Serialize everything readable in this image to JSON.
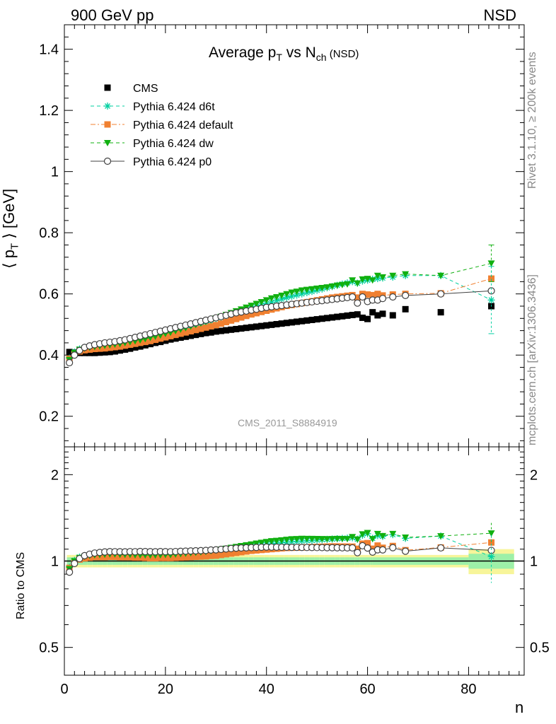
{
  "header": {
    "left": "900 GeV pp",
    "right": "NSD"
  },
  "title": {
    "prefix": "Average p",
    "sub1": "T",
    "mid": " vs N",
    "sub2": "ch",
    "suffix": " (NSD)"
  },
  "side": {
    "rivet": "Rivet 3.1.10, ≥ 200k events",
    "mcplots": "mcplots.cern.ch [arXiv:1306.3436]"
  },
  "watermark": "CMS_2011_S8884919",
  "chart_data": [
    {
      "type": "scatter",
      "panel": "main",
      "title": "Average p_T vs N_ch (NSD)",
      "xlabel": "n",
      "ylabel": "⟨ p_T ⟩ [GeV]",
      "xlim": [
        0,
        91
      ],
      "ylim": [
        0.1,
        1.48
      ],
      "yticks": [
        "0.2",
        "0.4",
        "0.6",
        "0.8",
        "1",
        "1.2",
        "1.4"
      ],
      "legend_position": "top-left",
      "series": [
        {
          "name": "CMS",
          "color": "#000000",
          "marker": "square",
          "x": [
            1,
            2,
            3,
            4,
            5,
            6,
            7,
            8,
            9,
            10,
            11,
            12,
            13,
            14,
            15,
            16,
            17,
            18,
            19,
            20,
            21,
            22,
            23,
            24,
            25,
            26,
            27,
            28,
            29,
            30,
            31,
            32,
            33,
            34,
            35,
            36,
            37,
            38,
            39,
            40,
            41,
            42,
            43,
            44,
            45,
            46,
            47,
            48,
            49,
            50,
            51,
            52,
            53,
            54,
            55,
            56,
            57,
            58,
            59,
            60,
            61,
            62,
            63,
            65,
            67.5,
            74.5,
            84.5
          ],
          "y": [
            0.41,
            0.408,
            0.407,
            0.407,
            0.407,
            0.407,
            0.408,
            0.409,
            0.41,
            0.412,
            0.415,
            0.418,
            0.421,
            0.425,
            0.428,
            0.432,
            0.436,
            0.44,
            0.443,
            0.447,
            0.451,
            0.454,
            0.457,
            0.46,
            0.463,
            0.466,
            0.469,
            0.472,
            0.474,
            0.477,
            0.479,
            0.481,
            0.483,
            0.485,
            0.487,
            0.489,
            0.491,
            0.493,
            0.495,
            0.497,
            0.499,
            0.501,
            0.503,
            0.505,
            0.507,
            0.509,
            0.511,
            0.513,
            0.515,
            0.517,
            0.519,
            0.521,
            0.523,
            0.525,
            0.527,
            0.529,
            0.531,
            0.533,
            0.522,
            0.518,
            0.54,
            0.53,
            0.535,
            0.53,
            0.55,
            0.54,
            0.56
          ]
        },
        {
          "name": "Pythia 6.424 d6t",
          "color": "#00d0a0",
          "marker": "star",
          "line": "dashed",
          "x": [
            1,
            2,
            3,
            4,
            5,
            6,
            7,
            8,
            9,
            10,
            11,
            12,
            13,
            14,
            15,
            16,
            17,
            18,
            19,
            20,
            21,
            22,
            23,
            24,
            25,
            26,
            27,
            28,
            29,
            30,
            31,
            32,
            33,
            34,
            35,
            36,
            37,
            38,
            39,
            40,
            41,
            42,
            43,
            44,
            45,
            46,
            47,
            48,
            49,
            50,
            51,
            52,
            53,
            54,
            55,
            56,
            57,
            58,
            59,
            60,
            61,
            62,
            63,
            65,
            67.5,
            74.5,
            84.5
          ],
          "y": [
            0.39,
            0.41,
            0.42,
            0.425,
            0.428,
            0.43,
            0.432,
            0.434,
            0.436,
            0.438,
            0.44,
            0.443,
            0.446,
            0.45,
            0.454,
            0.458,
            0.462,
            0.466,
            0.47,
            0.474,
            0.478,
            0.482,
            0.486,
            0.49,
            0.494,
            0.498,
            0.502,
            0.507,
            0.512,
            0.518,
            0.523,
            0.528,
            0.533,
            0.538,
            0.543,
            0.548,
            0.553,
            0.558,
            0.563,
            0.568,
            0.573,
            0.578,
            0.583,
            0.588,
            0.592,
            0.596,
            0.6,
            0.604,
            0.608,
            0.612,
            0.616,
            0.62,
            0.624,
            0.628,
            0.632,
            0.636,
            0.64,
            0.635,
            0.642,
            0.645,
            0.648,
            0.65,
            0.652,
            0.655,
            0.66,
            0.66,
            0.58
          ]
        },
        {
          "name": "Pythia 6.424 default",
          "color": "#f08030",
          "marker": "square",
          "line": "dash-dot",
          "x": [
            1,
            2,
            3,
            4,
            5,
            6,
            7,
            8,
            9,
            10,
            11,
            12,
            13,
            14,
            15,
            16,
            17,
            18,
            19,
            20,
            21,
            22,
            23,
            24,
            25,
            26,
            27,
            28,
            29,
            30,
            31,
            32,
            33,
            34,
            35,
            36,
            37,
            38,
            39,
            40,
            41,
            42,
            43,
            44,
            45,
            46,
            47,
            48,
            49,
            50,
            51,
            52,
            53,
            54,
            55,
            56,
            57,
            58,
            59,
            60,
            61,
            62,
            63,
            65,
            67.5,
            74.5,
            84.5
          ],
          "y": [
            0.388,
            0.405,
            0.412,
            0.416,
            0.418,
            0.42,
            0.421,
            0.422,
            0.424,
            0.426,
            0.428,
            0.431,
            0.434,
            0.437,
            0.44,
            0.443,
            0.446,
            0.45,
            0.454,
            0.458,
            0.462,
            0.466,
            0.47,
            0.474,
            0.478,
            0.482,
            0.486,
            0.49,
            0.494,
            0.498,
            0.503,
            0.508,
            0.513,
            0.518,
            0.523,
            0.528,
            0.533,
            0.537,
            0.541,
            0.545,
            0.549,
            0.553,
            0.557,
            0.561,
            0.564,
            0.567,
            0.57,
            0.573,
            0.576,
            0.579,
            0.582,
            0.585,
            0.588,
            0.59,
            0.592,
            0.594,
            0.596,
            0.588,
            0.6,
            0.598,
            0.596,
            0.6,
            0.595,
            0.598,
            0.6,
            0.602,
            0.65
          ]
        },
        {
          "name": "Pythia 6.424 dw",
          "color": "#10b010",
          "marker": "triangle-down",
          "line": "dashed",
          "x": [
            1,
            2,
            3,
            4,
            5,
            6,
            7,
            8,
            9,
            10,
            11,
            12,
            13,
            14,
            15,
            16,
            17,
            18,
            19,
            20,
            21,
            22,
            23,
            24,
            25,
            26,
            27,
            28,
            29,
            30,
            31,
            32,
            33,
            34,
            35,
            36,
            37,
            38,
            39,
            40,
            41,
            42,
            43,
            44,
            45,
            46,
            47,
            48,
            49,
            50,
            51,
            52,
            53,
            54,
            55,
            56,
            57,
            58,
            59,
            60,
            61,
            62,
            63,
            65,
            67.5,
            74.5,
            84.5
          ],
          "y": [
            0.385,
            0.408,
            0.418,
            0.422,
            0.425,
            0.427,
            0.429,
            0.431,
            0.433,
            0.435,
            0.437,
            0.44,
            0.443,
            0.446,
            0.449,
            0.453,
            0.457,
            0.461,
            0.465,
            0.47,
            0.474,
            0.479,
            0.484,
            0.489,
            0.494,
            0.499,
            0.504,
            0.509,
            0.514,
            0.52,
            0.526,
            0.532,
            0.538,
            0.544,
            0.55,
            0.556,
            0.562,
            0.568,
            0.574,
            0.58,
            0.586,
            0.59,
            0.595,
            0.6,
            0.605,
            0.608,
            0.612,
            0.614,
            0.616,
            0.618,
            0.62,
            0.622,
            0.625,
            0.628,
            0.63,
            0.632,
            0.645,
            0.635,
            0.648,
            0.65,
            0.645,
            0.66,
            0.655,
            0.66,
            0.665,
            0.66,
            0.7
          ]
        },
        {
          "name": "Pythia 6.424 p0",
          "color": "#404040",
          "marker": "circle-open",
          "line": "solid",
          "x": [
            1,
            2,
            3,
            4,
            5,
            6,
            7,
            8,
            9,
            10,
            11,
            12,
            13,
            14,
            15,
            16,
            17,
            18,
            19,
            20,
            21,
            22,
            23,
            24,
            25,
            26,
            27,
            28,
            29,
            30,
            31,
            32,
            33,
            34,
            35,
            36,
            37,
            38,
            39,
            40,
            41,
            42,
            43,
            44,
            45,
            46,
            47,
            48,
            49,
            50,
            51,
            52,
            53,
            54,
            55,
            56,
            57,
            58,
            59,
            60,
            61,
            62,
            63,
            65,
            67.5,
            74.5,
            84.5
          ],
          "y": [
            0.375,
            0.4,
            0.415,
            0.425,
            0.43,
            0.434,
            0.437,
            0.44,
            0.442,
            0.444,
            0.447,
            0.45,
            0.454,
            0.458,
            0.462,
            0.466,
            0.47,
            0.474,
            0.478,
            0.482,
            0.486,
            0.49,
            0.494,
            0.498,
            0.502,
            0.506,
            0.51,
            0.514,
            0.518,
            0.522,
            0.526,
            0.53,
            0.534,
            0.538,
            0.541,
            0.544,
            0.547,
            0.55,
            0.553,
            0.556,
            0.558,
            0.56,
            0.562,
            0.564,
            0.566,
            0.568,
            0.57,
            0.572,
            0.574,
            0.576,
            0.578,
            0.58,
            0.582,
            0.584,
            0.586,
            0.588,
            0.59,
            0.57,
            0.59,
            0.575,
            0.58,
            0.58,
            0.585,
            0.59,
            0.595,
            0.6,
            0.61
          ]
        }
      ]
    },
    {
      "type": "scatter",
      "panel": "ratio",
      "xlabel": "n",
      "ylabel": "Ratio to CMS",
      "xlim": [
        0,
        91
      ],
      "ylim": [
        0.4,
        2.5
      ],
      "scale": "log",
      "yticks": [
        "0.5",
        "1",
        "2"
      ],
      "xticks": [
        "0",
        "20",
        "40",
        "60",
        "80"
      ]
    }
  ]
}
